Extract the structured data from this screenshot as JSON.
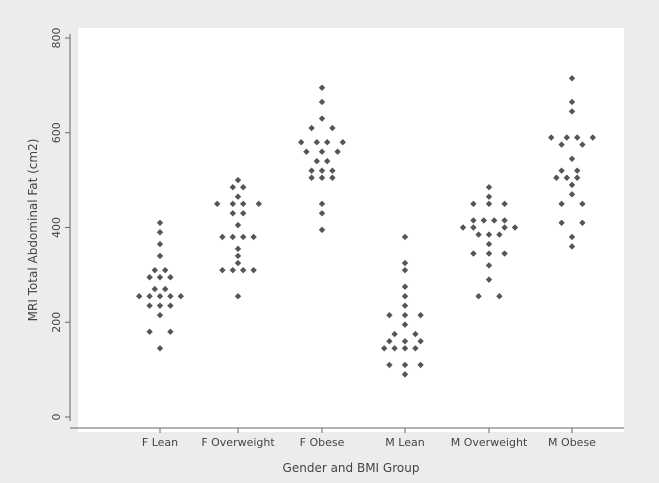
{
  "chart_data": {
    "type": "scatter",
    "subtype": "dot-strip",
    "title": "",
    "xlabel": "Gender and BMI Group",
    "ylabel": "MRI Total Abdominal Fat (cm2)",
    "ylim": [
      0,
      800
    ],
    "yticks": [
      0,
      200,
      400,
      600,
      800
    ],
    "categories": [
      "F Lean",
      "F Overweight",
      "F Obese",
      "M Lean",
      "M Overweight",
      "M Obese"
    ],
    "grid": false,
    "legend": "none",
    "marker_color": "#555555",
    "plot_background": "#ffffff",
    "page_background": "#ececec",
    "series": [
      {
        "category": "F Lean",
        "points": [
          {
            "y": 410,
            "offset": 0
          },
          {
            "y": 390,
            "offset": 0
          },
          {
            "y": 365,
            "offset": 0
          },
          {
            "y": 340,
            "offset": 0
          },
          {
            "y": 310,
            "offset": -1
          },
          {
            "y": 310,
            "offset": 1
          },
          {
            "y": 295,
            "offset": -2
          },
          {
            "y": 295,
            "offset": 0
          },
          {
            "y": 295,
            "offset": 2
          },
          {
            "y": 270,
            "offset": -1
          },
          {
            "y": 270,
            "offset": 1
          },
          {
            "y": 255,
            "offset": -4
          },
          {
            "y": 255,
            "offset": -2
          },
          {
            "y": 255,
            "offset": 0
          },
          {
            "y": 255,
            "offset": 2
          },
          {
            "y": 255,
            "offset": 4
          },
          {
            "y": 235,
            "offset": -2
          },
          {
            "y": 235,
            "offset": 0
          },
          {
            "y": 235,
            "offset": 2
          },
          {
            "y": 215,
            "offset": 0
          },
          {
            "y": 180,
            "offset": -2
          },
          {
            "y": 180,
            "offset": 2
          },
          {
            "y": 145,
            "offset": 0
          }
        ]
      },
      {
        "category": "F Overweight",
        "points": [
          {
            "y": 500,
            "offset": 0
          },
          {
            "y": 485,
            "offset": -1
          },
          {
            "y": 485,
            "offset": 1
          },
          {
            "y": 465,
            "offset": 0
          },
          {
            "y": 450,
            "offset": -4
          },
          {
            "y": 450,
            "offset": -1
          },
          {
            "y": 450,
            "offset": 1
          },
          {
            "y": 450,
            "offset": 4
          },
          {
            "y": 430,
            "offset": -1
          },
          {
            "y": 430,
            "offset": 1
          },
          {
            "y": 405,
            "offset": 0
          },
          {
            "y": 380,
            "offset": -3
          },
          {
            "y": 380,
            "offset": -1
          },
          {
            "y": 380,
            "offset": 1
          },
          {
            "y": 380,
            "offset": 3
          },
          {
            "y": 355,
            "offset": 0
          },
          {
            "y": 340,
            "offset": 0
          },
          {
            "y": 325,
            "offset": 0
          },
          {
            "y": 310,
            "offset": -3
          },
          {
            "y": 310,
            "offset": -1
          },
          {
            "y": 310,
            "offset": 1
          },
          {
            "y": 310,
            "offset": 3
          },
          {
            "y": 255,
            "offset": 0
          }
        ]
      },
      {
        "category": "F Obese",
        "points": [
          {
            "y": 695,
            "offset": 0
          },
          {
            "y": 665,
            "offset": 0
          },
          {
            "y": 630,
            "offset": 0
          },
          {
            "y": 610,
            "offset": -2
          },
          {
            "y": 610,
            "offset": 2
          },
          {
            "y": 580,
            "offset": -4
          },
          {
            "y": 580,
            "offset": -1
          },
          {
            "y": 580,
            "offset": 1
          },
          {
            "y": 580,
            "offset": 4
          },
          {
            "y": 560,
            "offset": -3
          },
          {
            "y": 560,
            "offset": 0
          },
          {
            "y": 560,
            "offset": 3
          },
          {
            "y": 540,
            "offset": -1
          },
          {
            "y": 540,
            "offset": 1
          },
          {
            "y": 520,
            "offset": -2
          },
          {
            "y": 520,
            "offset": 0
          },
          {
            "y": 520,
            "offset": 2
          },
          {
            "y": 505,
            "offset": -2
          },
          {
            "y": 505,
            "offset": 0
          },
          {
            "y": 505,
            "offset": 2
          },
          {
            "y": 450,
            "offset": 0
          },
          {
            "y": 430,
            "offset": 0
          },
          {
            "y": 395,
            "offset": 0
          }
        ]
      },
      {
        "category": "M Lean",
        "points": [
          {
            "y": 380,
            "offset": 0
          },
          {
            "y": 325,
            "offset": 0
          },
          {
            "y": 310,
            "offset": 0
          },
          {
            "y": 275,
            "offset": 0
          },
          {
            "y": 255,
            "offset": 0
          },
          {
            "y": 235,
            "offset": 0
          },
          {
            "y": 215,
            "offset": -3
          },
          {
            "y": 215,
            "offset": 0
          },
          {
            "y": 215,
            "offset": 3
          },
          {
            "y": 195,
            "offset": 0
          },
          {
            "y": 175,
            "offset": -2
          },
          {
            "y": 175,
            "offset": 2
          },
          {
            "y": 160,
            "offset": -3
          },
          {
            "y": 160,
            "offset": 0
          },
          {
            "y": 160,
            "offset": 3
          },
          {
            "y": 145,
            "offset": -4
          },
          {
            "y": 145,
            "offset": -2
          },
          {
            "y": 145,
            "offset": 0
          },
          {
            "y": 145,
            "offset": 2
          },
          {
            "y": 110,
            "offset": -3
          },
          {
            "y": 110,
            "offset": 0
          },
          {
            "y": 110,
            "offset": 3
          },
          {
            "y": 90,
            "offset": 0
          }
        ]
      },
      {
        "category": "M Overweight",
        "points": [
          {
            "y": 485,
            "offset": 0
          },
          {
            "y": 465,
            "offset": 0
          },
          {
            "y": 450,
            "offset": -3
          },
          {
            "y": 450,
            "offset": 0
          },
          {
            "y": 450,
            "offset": 3
          },
          {
            "y": 415,
            "offset": -3
          },
          {
            "y": 415,
            "offset": -1
          },
          {
            "y": 415,
            "offset": 1
          },
          {
            "y": 415,
            "offset": 3
          },
          {
            "y": 400,
            "offset": -5
          },
          {
            "y": 400,
            "offset": -3
          },
          {
            "y": 400,
            "offset": 3
          },
          {
            "y": 400,
            "offset": 5
          },
          {
            "y": 385,
            "offset": -2
          },
          {
            "y": 385,
            "offset": 0
          },
          {
            "y": 385,
            "offset": 2
          },
          {
            "y": 365,
            "offset": 0
          },
          {
            "y": 345,
            "offset": -3
          },
          {
            "y": 345,
            "offset": 0
          },
          {
            "y": 345,
            "offset": 3
          },
          {
            "y": 320,
            "offset": 0
          },
          {
            "y": 290,
            "offset": 0
          },
          {
            "y": 255,
            "offset": -2
          },
          {
            "y": 255,
            "offset": 2
          }
        ]
      },
      {
        "category": "M Obese",
        "points": [
          {
            "y": 715,
            "offset": 0
          },
          {
            "y": 665,
            "offset": 0
          },
          {
            "y": 645,
            "offset": 0
          },
          {
            "y": 590,
            "offset": -4
          },
          {
            "y": 590,
            "offset": -1
          },
          {
            "y": 590,
            "offset": 1
          },
          {
            "y": 590,
            "offset": 4
          },
          {
            "y": 575,
            "offset": -2
          },
          {
            "y": 575,
            "offset": 2
          },
          {
            "y": 545,
            "offset": 0
          },
          {
            "y": 520,
            "offset": -2
          },
          {
            "y": 520,
            "offset": 1
          },
          {
            "y": 505,
            "offset": -3
          },
          {
            "y": 505,
            "offset": -1
          },
          {
            "y": 505,
            "offset": 1
          },
          {
            "y": 490,
            "offset": 0
          },
          {
            "y": 470,
            "offset": 0
          },
          {
            "y": 450,
            "offset": -2
          },
          {
            "y": 450,
            "offset": 2
          },
          {
            "y": 410,
            "offset": -2
          },
          {
            "y": 410,
            "offset": 2
          },
          {
            "y": 380,
            "offset": 0
          },
          {
            "y": 360,
            "offset": 0
          }
        ]
      }
    ]
  }
}
